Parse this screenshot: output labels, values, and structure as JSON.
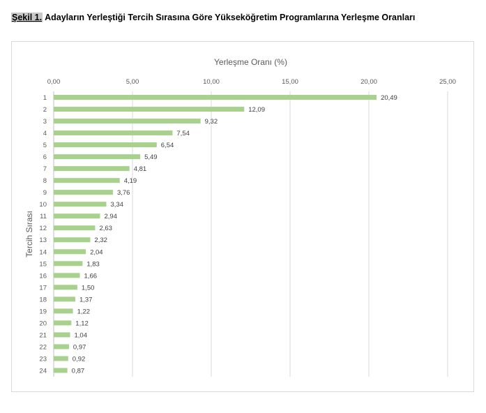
{
  "figure": {
    "caption_label": "Şekil 1.",
    "caption_text": " Adayların Yerleştiği Tercih Sırasına Göre Yükseköğretim Programlarına Yerleşme Oranları"
  },
  "chart_data": {
    "type": "bar",
    "orientation": "horizontal",
    "title": "",
    "xlabel": "Yerleşme Oranı (%)",
    "ylabel": "Tercih Sırası",
    "xlim": [
      0,
      25
    ],
    "x_ticks": [
      "0,00",
      "5,00",
      "10,00",
      "15,00",
      "20,00",
      "25,00"
    ],
    "x_axis_position": "top",
    "grid": "vertical",
    "bar_color": "#a9d18e",
    "categories": [
      "1",
      "2",
      "3",
      "4",
      "5",
      "6",
      "7",
      "8",
      "9",
      "10",
      "11",
      "12",
      "13",
      "14",
      "15",
      "16",
      "17",
      "18",
      "19",
      "20",
      "21",
      "22",
      "23",
      "24"
    ],
    "values": [
      20.49,
      12.09,
      9.32,
      7.54,
      6.54,
      5.49,
      4.81,
      4.19,
      3.76,
      3.34,
      2.94,
      2.63,
      2.32,
      2.04,
      1.83,
      1.66,
      1.5,
      1.37,
      1.22,
      1.12,
      1.04,
      0.97,
      0.92,
      0.87
    ],
    "value_labels": [
      "20,49",
      "12,09",
      "9,32",
      "7,54",
      "6,54",
      "5,49",
      "4,81",
      "4,19",
      "3,76",
      "3,34",
      "2,94",
      "2,63",
      "2,32",
      "2,04",
      "1,83",
      "1,66",
      "1,50",
      "1,37",
      "1,22",
      "1,12",
      "1,04",
      "0,97",
      "0,92",
      "0,87"
    ]
  }
}
